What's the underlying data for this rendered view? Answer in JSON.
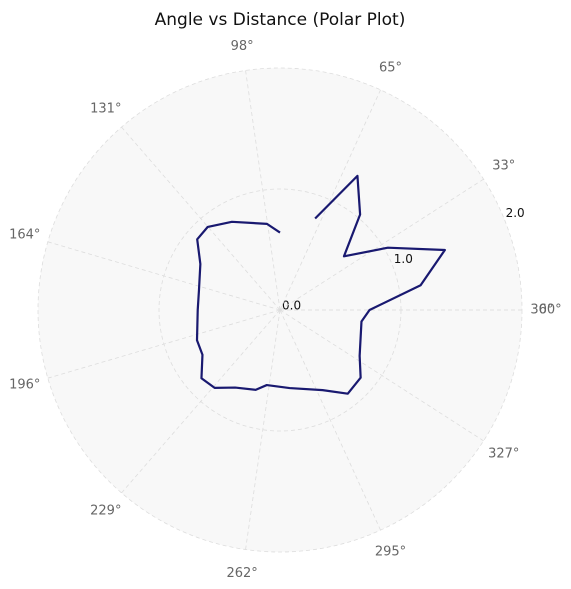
{
  "chart_data": {
    "type": "polar-line",
    "title": "Angle vs Distance (Polar Plot)",
    "x": [
      90,
      98.6,
      118.6,
      131,
      139.5,
      150,
      166,
      180,
      200,
      210,
      221,
      230,
      240,
      253,
      260,
      277,
      298,
      309,
      320,
      330,
      352,
      0,
      10,
      20,
      30,
      40,
      50,
      60,
      69
    ],
    "series": [
      {
        "name": "Distance",
        "color": "#191970",
        "values": [
          0.64,
          0.72,
          0.83,
          0.91,
          0.9,
          0.76,
          0.69,
          0.68,
          0.73,
          0.74,
          0.86,
          0.84,
          0.74,
          0.69,
          0.63,
          0.65,
          0.75,
          0.89,
          0.87,
          0.76,
          0.68,
          0.74,
          1.18,
          1.45,
          1.03,
          0.69,
          1.03,
          1.28,
          0.81
        ]
      }
    ],
    "ylim": [
      0,
      2
    ],
    "yticks": [
      {
        "value": 0,
        "label": "0.0"
      },
      {
        "value": 1,
        "label": "1.0"
      },
      {
        "value": 2,
        "label": "2.0"
      }
    ],
    "xticks": [
      {
        "value": 0,
        "label": "0°"
      },
      {
        "value": 32.727,
        "label": "33°"
      },
      {
        "value": 65.455,
        "label": "65°"
      },
      {
        "value": 98.182,
        "label": "98°"
      },
      {
        "value": 130.909,
        "label": "131°"
      },
      {
        "value": 163.636,
        "label": "164°"
      },
      {
        "value": 196.364,
        "label": "196°"
      },
      {
        "value": 229.091,
        "label": "229°"
      },
      {
        "value": 261.818,
        "label": "262°"
      },
      {
        "value": 294.545,
        "label": "295°"
      },
      {
        "value": 327.273,
        "label": "327°"
      },
      {
        "value": 360,
        "label": "360°"
      }
    ],
    "grid": true
  }
}
